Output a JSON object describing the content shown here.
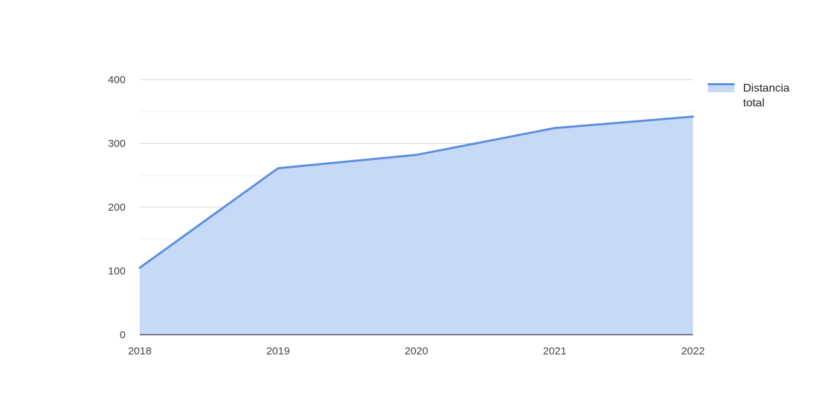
{
  "chart_data": {
    "type": "area",
    "title": "",
    "xlabel": "",
    "ylabel": "",
    "categories": [
      "2018",
      "2019",
      "2020",
      "2021",
      "2022"
    ],
    "series": [
      {
        "name": "Distancia total",
        "name_lines": [
          "Distancia",
          "total"
        ],
        "values": [
          105,
          261,
          282,
          324,
          342
        ],
        "line_color": "#5b8fdc",
        "fill_color": "#c6d9f6"
      }
    ],
    "ylim": [
      0,
      400
    ],
    "yticks": [
      0,
      100,
      200,
      300,
      400
    ],
    "grid": true,
    "legend_position": "right"
  }
}
